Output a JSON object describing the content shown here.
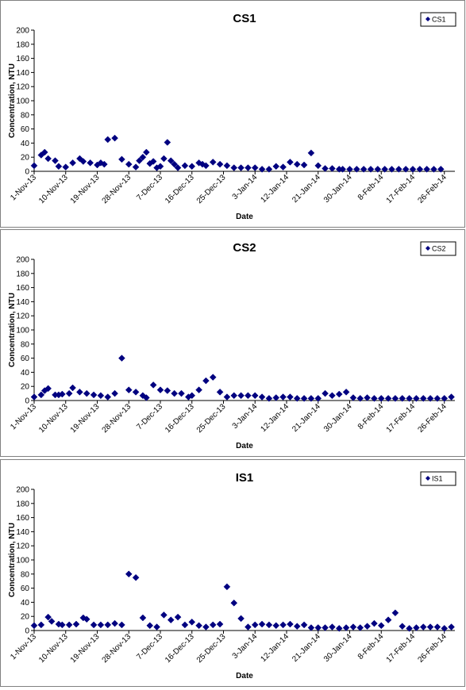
{
  "chart_data": [
    {
      "type": "scatter",
      "title": "CS1",
      "xlabel": "Date",
      "ylabel": "Concentration, NTU",
      "ylim": [
        0,
        200
      ],
      "yticks": [
        "0",
        "20",
        "40",
        "60",
        "80",
        "100",
        "120",
        "140",
        "160",
        "180",
        "200"
      ],
      "xlim": [
        "2013-11-01",
        "2014-03-01"
      ],
      "xticks": [
        "1-Nov-13",
        "10-Nov-13",
        "19-Nov-13",
        "28-Nov-13",
        "7-Dec-13",
        "16-Dec-13",
        "25-Dec-13",
        "3-Jan-14",
        "12-Jan-14",
        "21-Jan-14",
        "30-Jan-14",
        "8-Feb-14",
        "17-Feb-14",
        "26-Feb-14"
      ],
      "legend_position": "top-right",
      "marker_color": "#000080",
      "series": [
        {
          "name": "CS1",
          "x": [
            "2013-11-01",
            "2013-11-03",
            "2013-11-04",
            "2013-11-05",
            "2013-11-07",
            "2013-11-08",
            "2013-11-10",
            "2013-11-12",
            "2013-11-14",
            "2013-11-15",
            "2013-11-17",
            "2013-11-19",
            "2013-11-20",
            "2013-11-21",
            "2013-11-22",
            "2013-11-24",
            "2013-11-26",
            "2013-11-28",
            "2013-11-30",
            "2013-12-01",
            "2013-12-02",
            "2013-12-03",
            "2013-12-04",
            "2013-12-05",
            "2013-12-06",
            "2013-12-07",
            "2013-12-08",
            "2013-12-09",
            "2013-12-10",
            "2013-12-11",
            "2013-12-12",
            "2013-12-14",
            "2013-12-16",
            "2013-12-18",
            "2013-12-19",
            "2013-12-20",
            "2013-12-22",
            "2013-12-24",
            "2013-12-26",
            "2013-12-28",
            "2013-12-30",
            "2014-01-01",
            "2014-01-03",
            "2014-01-05",
            "2014-01-07",
            "2014-01-09",
            "2014-01-11",
            "2014-01-13",
            "2014-01-15",
            "2014-01-17",
            "2014-01-19",
            "2014-01-21",
            "2014-01-23",
            "2014-01-25",
            "2014-01-27",
            "2014-01-28",
            "2014-01-30",
            "2014-02-01",
            "2014-02-03",
            "2014-02-05",
            "2014-02-07",
            "2014-02-09",
            "2014-02-11",
            "2014-02-13",
            "2014-02-15",
            "2014-02-17",
            "2014-02-19",
            "2014-02-21",
            "2014-02-23",
            "2014-02-25"
          ],
          "values": [
            8,
            23,
            27,
            18,
            15,
            7,
            6,
            12,
            18,
            14,
            12,
            9,
            12,
            10,
            45,
            47,
            17,
            10,
            6,
            15,
            20,
            27,
            11,
            14,
            5,
            7,
            18,
            41,
            15,
            10,
            5,
            8,
            7,
            12,
            10,
            8,
            13,
            10,
            8,
            5,
            5,
            5,
            5,
            3,
            3,
            7,
            6,
            13,
            10,
            9,
            26,
            8,
            4,
            4,
            3,
            3,
            3,
            3,
            3,
            3,
            3,
            3,
            3,
            3,
            3,
            3,
            3,
            3,
            3,
            3
          ]
        }
      ]
    },
    {
      "type": "scatter",
      "title": "CS2",
      "xlabel": "Date",
      "ylabel": "Concentration, NTU",
      "ylim": [
        0,
        200
      ],
      "yticks": [
        "0",
        "20",
        "40",
        "60",
        "80",
        "100",
        "120",
        "140",
        "160",
        "180",
        "200"
      ],
      "xlim": [
        "2013-11-01",
        "2014-03-01"
      ],
      "xticks": [
        "1-Nov-13",
        "10-Nov-13",
        "19-Nov-13",
        "28-Nov-13",
        "7-Dec-13",
        "16-Dec-13",
        "25-Dec-13",
        "3-Jan-14",
        "12-Jan-14",
        "21-Jan-14",
        "30-Jan-14",
        "8-Feb-14",
        "17-Feb-14",
        "26-Feb-14"
      ],
      "legend_position": "top-right",
      "marker_color": "#000080",
      "series": [
        {
          "name": "CS2",
          "x": [
            "2013-11-01",
            "2013-11-03",
            "2013-11-04",
            "2013-11-05",
            "2013-11-07",
            "2013-11-08",
            "2013-11-09",
            "2013-11-11",
            "2013-11-12",
            "2013-11-14",
            "2013-11-16",
            "2013-11-18",
            "2013-11-20",
            "2013-11-22",
            "2013-11-24",
            "2013-11-26",
            "2013-11-28",
            "2013-11-30",
            "2013-12-02",
            "2013-12-03",
            "2013-12-05",
            "2013-12-07",
            "2013-12-09",
            "2013-12-11",
            "2013-12-13",
            "2013-12-15",
            "2013-12-16",
            "2013-12-18",
            "2013-12-20",
            "2013-12-22",
            "2013-12-24",
            "2013-12-26",
            "2013-12-28",
            "2013-12-30",
            "2014-01-01",
            "2014-01-03",
            "2014-01-05",
            "2014-01-07",
            "2014-01-09",
            "2014-01-11",
            "2014-01-13",
            "2014-01-15",
            "2014-01-17",
            "2014-01-19",
            "2014-01-21",
            "2014-01-23",
            "2014-01-25",
            "2014-01-27",
            "2014-01-29",
            "2014-01-31",
            "2014-02-02",
            "2014-02-04",
            "2014-02-06",
            "2014-02-08",
            "2014-02-10",
            "2014-02-12",
            "2014-02-14",
            "2014-02-16",
            "2014-02-18",
            "2014-02-20",
            "2014-02-22",
            "2014-02-24",
            "2014-02-26",
            "2014-02-28"
          ],
          "values": [
            5,
            8,
            14,
            17,
            8,
            8,
            9,
            10,
            18,
            12,
            10,
            8,
            7,
            5,
            10,
            60,
            15,
            12,
            7,
            4,
            22,
            15,
            14,
            10,
            10,
            5,
            7,
            15,
            28,
            33,
            12,
            5,
            7,
            7,
            7,
            7,
            5,
            3,
            4,
            5,
            5,
            3,
            3,
            3,
            3,
            10,
            7,
            9,
            12,
            4,
            3,
            4,
            3,
            3,
            3,
            3,
            3,
            3,
            3,
            3,
            3,
            3,
            3,
            5
          ]
        }
      ]
    },
    {
      "type": "scatter",
      "title": "IS1",
      "xlabel": "Date",
      "ylabel": "Concentration, NTU",
      "ylim": [
        0,
        200
      ],
      "yticks": [
        "0",
        "20",
        "40",
        "60",
        "80",
        "100",
        "120",
        "140",
        "160",
        "180",
        "200"
      ],
      "xlim": [
        "2013-11-01",
        "2014-03-01"
      ],
      "xticks": [
        "1-Nov-13",
        "10-Nov-13",
        "19-Nov-13",
        "28-Nov-13",
        "7-Dec-13",
        "16-Dec-13",
        "25-Dec-13",
        "3-Jan-14",
        "12-Jan-14",
        "21-Jan-14",
        "30-Jan-14",
        "8-Feb-14",
        "17-Feb-14",
        "26-Feb-14"
      ],
      "legend_position": "top-right",
      "marker_color": "#000080",
      "series": [
        {
          "name": "IS1",
          "x": [
            "2013-11-01",
            "2013-11-03",
            "2013-11-05",
            "2013-11-06",
            "2013-11-08",
            "2013-11-09",
            "2013-11-11",
            "2013-11-13",
            "2013-11-15",
            "2013-11-16",
            "2013-11-18",
            "2013-11-20",
            "2013-11-22",
            "2013-11-24",
            "2013-11-26",
            "2013-11-28",
            "2013-11-30",
            "2013-12-02",
            "2013-12-04",
            "2013-12-06",
            "2013-12-08",
            "2013-12-10",
            "2013-12-12",
            "2013-12-14",
            "2013-12-16",
            "2013-12-18",
            "2013-12-20",
            "2013-12-22",
            "2013-12-24",
            "2013-12-26",
            "2013-12-28",
            "2013-12-30",
            "2014-01-01",
            "2014-01-03",
            "2014-01-05",
            "2014-01-07",
            "2014-01-09",
            "2014-01-11",
            "2014-01-13",
            "2014-01-15",
            "2014-01-17",
            "2014-01-19",
            "2014-01-21",
            "2014-01-23",
            "2014-01-25",
            "2014-01-27",
            "2014-01-29",
            "2014-01-31",
            "2014-02-02",
            "2014-02-04",
            "2014-02-06",
            "2014-02-08",
            "2014-02-10",
            "2014-02-12",
            "2014-02-14",
            "2014-02-16",
            "2014-02-18",
            "2014-02-20",
            "2014-02-22",
            "2014-02-24",
            "2014-02-26",
            "2014-02-28"
          ],
          "values": [
            7,
            8,
            19,
            13,
            9,
            8,
            8,
            9,
            18,
            16,
            8,
            8,
            8,
            10,
            8,
            80,
            75,
            18,
            7,
            5,
            22,
            15,
            19,
            8,
            12,
            7,
            5,
            8,
            9,
            62,
            39,
            17,
            5,
            8,
            9,
            8,
            7,
            8,
            9,
            6,
            8,
            4,
            4,
            4,
            5,
            3,
            4,
            5,
            4,
            6,
            10,
            7,
            15,
            25,
            6,
            3,
            4,
            5,
            5,
            5,
            3,
            5
          ]
        }
      ]
    }
  ]
}
